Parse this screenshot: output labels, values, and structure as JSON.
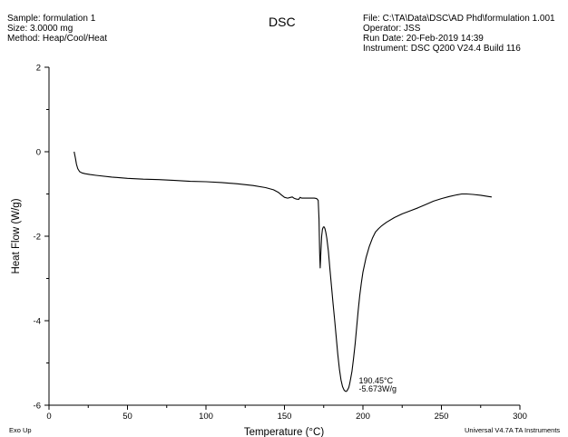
{
  "header": {
    "left": [
      "Sample: formulation 1",
      "Size:  3.0000 mg",
      "Method: Heap/Cool/Heat"
    ],
    "right": [
      "File: C:\\TA\\Data\\DSC\\AD Phd\\formulation 1.001",
      "Operator: JSS",
      "Run Date: 20-Feb-2019 14:39",
      "Instrument: DSC Q200 V24.4 Build 116"
    ]
  },
  "footer": {
    "left": "Exo Up",
    "right": "Universal V4.7A TA Instruments"
  },
  "chart_data": {
    "type": "line",
    "title": "DSC",
    "xlabel": "Temperature (°C)",
    "ylabel": "Heat Flow (W/g)",
    "xlim": [
      0,
      300
    ],
    "ylim": [
      -6,
      2
    ],
    "xticks": [
      "0",
      "50",
      "100",
      "150",
      "200",
      "250",
      "300"
    ],
    "yticks": [
      "-6",
      "-4",
      "-2",
      "0",
      "2"
    ],
    "grid": false,
    "color": "#000000",
    "series": [
      {
        "x": [
          16,
          16.8,
          17.5,
          18.3,
          19.5,
          21,
          23,
          26,
          30,
          40,
          50,
          60,
          70,
          80,
          90,
          100,
          110,
          120,
          130,
          138,
          143,
          146,
          148,
          150,
          152,
          154,
          155,
          156,
          157.5,
          159,
          160,
          161,
          163,
          166,
          169,
          170.5,
          171.5,
          172,
          172.4,
          172.8,
          173.2,
          173.7,
          174.2,
          174.8,
          175.3,
          175.8,
          176.3,
          177,
          178,
          179,
          180,
          181,
          182,
          183,
          184,
          185,
          186,
          187,
          188,
          188.5,
          189,
          189.5,
          190,
          190.45,
          191,
          191.5,
          192,
          193,
          194,
          195,
          196,
          197,
          198,
          199,
          200,
          202,
          204,
          206,
          208,
          210,
          212,
          215,
          220,
          225,
          230,
          235,
          240,
          245,
          250,
          255,
          260,
          263,
          266,
          270,
          275,
          280,
          282
        ],
        "y": [
          0,
          -0.15,
          -0.3,
          -0.4,
          -0.47,
          -0.5,
          -0.52,
          -0.54,
          -0.56,
          -0.6,
          -0.63,
          -0.65,
          -0.66,
          -0.68,
          -0.7,
          -0.71,
          -0.73,
          -0.76,
          -0.8,
          -0.85,
          -0.9,
          -0.96,
          -1.02,
          -1.08,
          -1.1,
          -1.08,
          -1.07,
          -1.1,
          -1.12,
          -1.13,
          -1.08,
          -1.1,
          -1.1,
          -1.1,
          -1.1,
          -1.11,
          -1.15,
          -1.6,
          -2.4,
          -2.75,
          -2.4,
          -2.0,
          -1.83,
          -1.78,
          -1.78,
          -1.82,
          -1.9,
          -2.05,
          -2.35,
          -2.8,
          -3.2,
          -3.6,
          -4.0,
          -4.4,
          -4.8,
          -5.15,
          -5.4,
          -5.56,
          -5.64,
          -5.66,
          -5.673,
          -5.67,
          -5.65,
          -5.62,
          -5.58,
          -5.5,
          -5.4,
          -5.2,
          -4.9,
          -4.55,
          -4.15,
          -3.75,
          -3.4,
          -3.1,
          -2.85,
          -2.5,
          -2.25,
          -2.05,
          -1.9,
          -1.82,
          -1.75,
          -1.67,
          -1.56,
          -1.47,
          -1.4,
          -1.33,
          -1.25,
          -1.17,
          -1.11,
          -1.06,
          -1.02,
          -1.0,
          -1.0,
          -1.01,
          -1.03,
          -1.06,
          -1.07
        ]
      }
    ],
    "annotations": [
      {
        "x": 190.45,
        "y": -5.673,
        "lines": [
          "190.45°C",
          "-5.673W/g"
        ]
      }
    ]
  }
}
